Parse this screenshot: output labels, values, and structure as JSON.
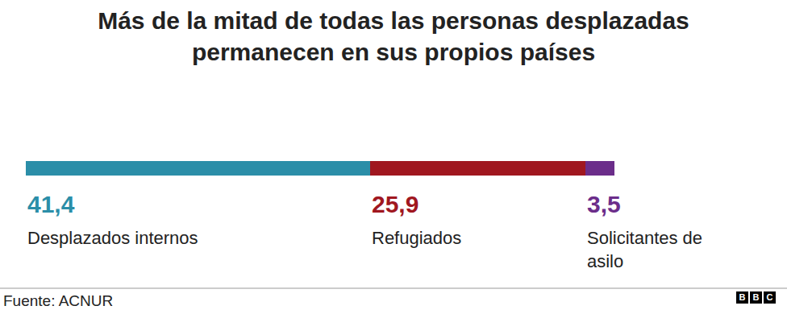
{
  "chart_data": {
    "type": "bar",
    "title": "Más de la mitad de todas las personas desplazadas permanecen en sus propios países",
    "orientation": "horizontal",
    "stacked": true,
    "data_labels": true,
    "tick_labels": false,
    "xlim": [
      0,
      70.8
    ],
    "series": [
      {
        "name": "Desplazados internos",
        "color": "#2b8ea8",
        "values": [
          41.4
        ],
        "value_labels": [
          "41,4"
        ]
      },
      {
        "name": "Refugiados",
        "color": "#a0171f",
        "values": [
          25.9
        ],
        "value_labels": [
          "25,9"
        ]
      },
      {
        "name": "Solicitantes de asilo",
        "color": "#6b2d8a",
        "values": [
          3.5
        ],
        "value_labels": [
          "3,5"
        ]
      }
    ],
    "source": "Fuente: ACNUR",
    "logo": "BBC"
  }
}
